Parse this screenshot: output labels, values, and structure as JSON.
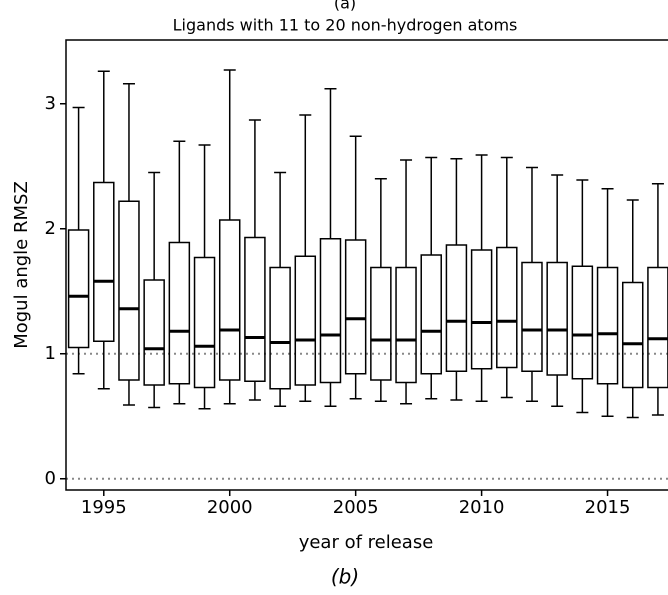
{
  "chart_data": {
    "type": "box",
    "panel_label": "(a)",
    "title": "Ligands with 11 to 20 non-hydrogen atoms",
    "caption": "(b)",
    "xlabel": "year of release",
    "ylabel": "Mogul angle RMSZ",
    "x": [
      1994,
      1995,
      1996,
      1997,
      1998,
      1999,
      2000,
      2001,
      2002,
      2003,
      2004,
      2005,
      2006,
      2007,
      2008,
      2009,
      2010,
      2011,
      2012,
      2013,
      2014,
      2015,
      2016,
      2017
    ],
    "whishi": [
      2.97,
      3.26,
      3.16,
      2.45,
      2.7,
      2.67,
      3.27,
      2.87,
      2.45,
      2.91,
      3.12,
      2.74,
      2.4,
      2.55,
      2.57,
      2.56,
      2.59,
      2.57,
      2.49,
      2.43,
      2.39,
      2.32,
      2.23,
      2.36
    ],
    "q3": [
      1.99,
      2.37,
      2.22,
      1.59,
      1.89,
      1.77,
      2.07,
      1.93,
      1.69,
      1.78,
      1.92,
      1.91,
      1.69,
      1.69,
      1.79,
      1.87,
      1.83,
      1.85,
      1.73,
      1.73,
      1.7,
      1.69,
      1.57,
      1.69
    ],
    "median": [
      1.46,
      1.58,
      1.36,
      1.04,
      1.18,
      1.06,
      1.19,
      1.13,
      1.09,
      1.11,
      1.15,
      1.28,
      1.11,
      1.11,
      1.18,
      1.26,
      1.25,
      1.26,
      1.19,
      1.19,
      1.15,
      1.16,
      1.08,
      1.12
    ],
    "q1": [
      1.05,
      1.1,
      0.79,
      0.75,
      0.76,
      0.73,
      0.79,
      0.78,
      0.72,
      0.75,
      0.77,
      0.84,
      0.79,
      0.77,
      0.84,
      0.86,
      0.88,
      0.89,
      0.86,
      0.83,
      0.8,
      0.76,
      0.73,
      0.73
    ],
    "whislo": [
      0.84,
      0.72,
      0.59,
      0.57,
      0.6,
      0.56,
      0.6,
      0.63,
      0.58,
      0.62,
      0.58,
      0.64,
      0.62,
      0.6,
      0.64,
      0.63,
      0.62,
      0.65,
      0.62,
      0.58,
      0.53,
      0.5,
      0.49,
      0.51
    ],
    "hlines": [
      0,
      1
    ],
    "xlim": [
      1993.5,
      2017.4
    ],
    "xticks": [
      1995,
      2000,
      2005,
      2010,
      2015
    ],
    "ylim": [
      -0.09,
      3.51
    ],
    "yticks": [
      0,
      1,
      2,
      3
    ]
  }
}
